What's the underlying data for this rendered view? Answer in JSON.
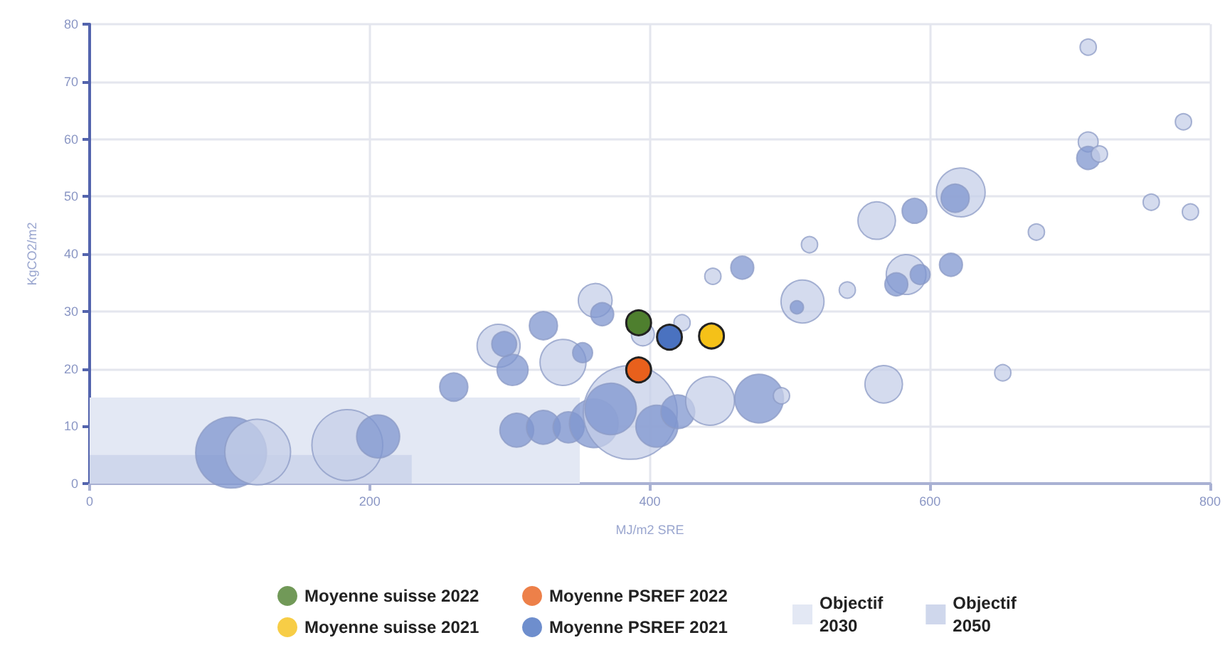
{
  "chart_data": {
    "type": "bubble",
    "xlabel": "MJ/m2 SRE",
    "ylabel": "KgCO2/m2",
    "xlim": [
      0,
      800
    ],
    "xticks": [
      0,
      200,
      400,
      600,
      800
    ],
    "ylim": [
      0,
      80
    ],
    "yticks": [
      0,
      10,
      20,
      30,
      40,
      50,
      60,
      70,
      80
    ],
    "grid": true,
    "legend": "bottom",
    "marker": "circle",
    "series": [
      {
        "name": "Objectif 2030",
        "type": "area",
        "marker": "none",
        "color": "#e3e8f4",
        "x": [
          0,
          350
        ],
        "values": [
          15,
          15
        ]
      },
      {
        "name": "Objectif 2050",
        "type": "area",
        "marker": "none",
        "color": "#cfd7ec",
        "x": [
          0,
          230
        ],
        "values": [
          5,
          5
        ]
      },
      {
        "colors": [
          "#7f96cf",
          "#c5cfe8",
          "#c5cfe8",
          "#7f96cf",
          "#7f96cf",
          "#c5cfe8",
          "#7f96cf",
          "#7f96cf",
          "#7f96cf",
          "#c5cfe8",
          "#7f96cf",
          "#c5cfe8",
          "#7f96cf",
          "#7f96cf",
          "#7f96cf",
          "#7f96cf",
          "#7f96cf",
          "#c5cfe8",
          "#7f96cf",
          "#7f96cf",
          "#7f96cf",
          "#c5cfe8",
          "#c5cfe8",
          "#c5cfe8",
          "#7f96cf",
          "#c5cfe8",
          "#c5cfe8",
          "#7f96cf",
          "#c5cfe8",
          "#c5cfe8",
          "#7f96cf",
          "#c5cfe8",
          "#c5cfe8",
          "#7f96cf",
          "#c5cfe8",
          "#7f96cf",
          "#7f96cf",
          "#7f96cf",
          "#c5cfe8",
          "#c5cfe8",
          "#c5cfe8",
          "#7f96cf",
          "#c5cfe8",
          "#c5cfe8",
          "#c5cfe8",
          "#7f96cf",
          "#c5cfe8",
          "#c5cfe8",
          "#c5cfe8",
          "#c5cfe8"
        ],
        "x": [
          101,
          120,
          184,
          206,
          260,
          292,
          296,
          302,
          324,
          338,
          352,
          361,
          366,
          305,
          324,
          342,
          360,
          386,
          372,
          405,
          420,
          395,
          423,
          443,
          478,
          494,
          445,
          466,
          514,
          509,
          505,
          541,
          562,
          589,
          583,
          576,
          593,
          615,
          567,
          652,
          622,
          618,
          676,
          713,
          713,
          713,
          721,
          758,
          781,
          786
        ],
        "values": [
          5.4,
          5.5,
          6.7,
          8.2,
          16.8,
          24,
          24.3,
          19.8,
          27.5,
          21.1,
          22.8,
          31.9,
          29.5,
          9.3,
          9.8,
          9.8,
          10.5,
          12.4,
          13,
          10,
          12.5,
          26,
          28,
          14.4,
          14.8,
          15.3,
          36.1,
          37.6,
          41.6,
          31.7,
          30.7,
          33.7,
          45.8,
          47.5,
          36.4,
          34.7,
          36.4,
          38.1,
          17.3,
          19.3,
          50.7,
          49.7,
          43.8,
          76,
          59.5,
          56.7,
          57.4,
          49,
          63,
          47.3
        ],
        "sizes": [
          0.57,
          0.49,
          0.57,
          0.21,
          0.09,
          0.21,
          0.07,
          0.11,
          0.09,
          0.24,
          0.045,
          0.13,
          0.06,
          0.13,
          0.13,
          0.11,
          0.27,
          1,
          0.3,
          0.2,
          0.13,
          0.06,
          0.03,
          0.27,
          0.27,
          0.03,
          0.03,
          0.06,
          0.03,
          0.21,
          0.02,
          0.03,
          0.16,
          0.07,
          0.18,
          0.06,
          0.045,
          0.06,
          0.16,
          0.03,
          0.27,
          0.09,
          0.03,
          0.03,
          0.045,
          0.06,
          0.03,
          0.03,
          0.03,
          0.03
        ]
      },
      {
        "name": "Moyenne suisse 2022",
        "color": "#4e7f2e",
        "x": [
          392
        ],
        "values": [
          28
        ],
        "sizes": [
          0.07
        ]
      },
      {
        "name": "Moyenne suisse 2021",
        "color": "#f5c118",
        "x": [
          444
        ],
        "values": [
          25.7
        ],
        "sizes": [
          0.07
        ]
      },
      {
        "name": "Moyenne PSREF 2022",
        "color": "#e8601c",
        "x": [
          392
        ],
        "values": [
          19.8
        ],
        "sizes": [
          0.07
        ]
      },
      {
        "name": "Moyenne PSREF 2021",
        "color": "#4a72c0",
        "x": [
          414
        ],
        "values": [
          25.5
        ],
        "sizes": [
          0.07
        ]
      }
    ]
  }
}
